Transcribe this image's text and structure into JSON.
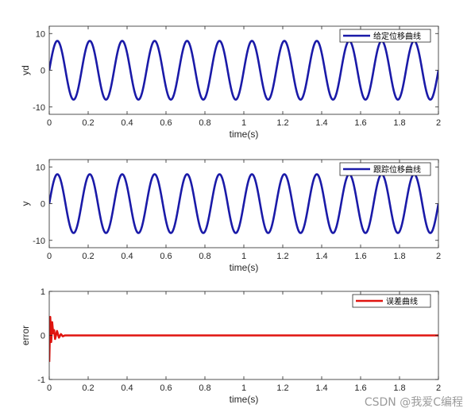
{
  "chart_data": [
    {
      "type": "line",
      "xlabel": "time(s)",
      "ylabel": "yd",
      "xlim": [
        0,
        2
      ],
      "ylim": [
        -12,
        12
      ],
      "xticks": [
        "0",
        "0.2",
        "0.4",
        "0.6",
        "0.8",
        "1",
        "1.2",
        "1.4",
        "1.6",
        "1.8",
        "2"
      ],
      "yticks": [
        "-10",
        "0",
        "10"
      ],
      "grid": false,
      "legend_position": "top-right",
      "series": [
        {
          "name": "给定位移曲线",
          "color": "#1a1aa8",
          "function": "8*sin(12*pi*t)",
          "amplitude": 8,
          "frequency_hz": 6
        }
      ]
    },
    {
      "type": "line",
      "xlabel": "time(s)",
      "ylabel": "y",
      "xlim": [
        0,
        2
      ],
      "ylim": [
        -12,
        12
      ],
      "xticks": [
        "0",
        "0.2",
        "0.4",
        "0.6",
        "0.8",
        "1",
        "1.2",
        "1.4",
        "1.6",
        "1.8",
        "2"
      ],
      "yticks": [
        "-10",
        "0",
        "10"
      ],
      "grid": false,
      "legend_position": "top-right",
      "series": [
        {
          "name": "跟踪位移曲线",
          "color": "#1a1aa8",
          "function": "8*sin(12*pi*t)",
          "amplitude": 8,
          "frequency_hz": 6
        }
      ]
    },
    {
      "type": "line",
      "xlabel": "time(s)",
      "ylabel": "error",
      "xlim": [
        0,
        2
      ],
      "ylim": [
        -1,
        1
      ],
      "xticks": [
        "0",
        "0.2",
        "0.4",
        "0.6",
        "0.8",
        "1",
        "1.2",
        "1.4",
        "1.6",
        "1.8",
        "2"
      ],
      "yticks": [
        "-1",
        "0",
        "1"
      ],
      "grid": false,
      "legend_position": "top-right",
      "series": [
        {
          "name": "误差曲线",
          "color": "#e0140f",
          "points": [
            [
              0,
              -0.6
            ],
            [
              0.005,
              0.42
            ],
            [
              0.01,
              -0.15
            ],
            [
              0.015,
              0.3
            ],
            [
              0.02,
              0.05
            ],
            [
              0.025,
              0.12
            ],
            [
              0.03,
              -0.08
            ],
            [
              0.04,
              0.1
            ],
            [
              0.05,
              -0.05
            ],
            [
              0.06,
              0.03
            ],
            [
              0.07,
              -0.02
            ],
            [
              0.08,
              0.0
            ],
            [
              0.1,
              0.0
            ],
            [
              2.0,
              0.0
            ]
          ]
        }
      ]
    }
  ],
  "watermark": "CSDN @我爱C编程"
}
